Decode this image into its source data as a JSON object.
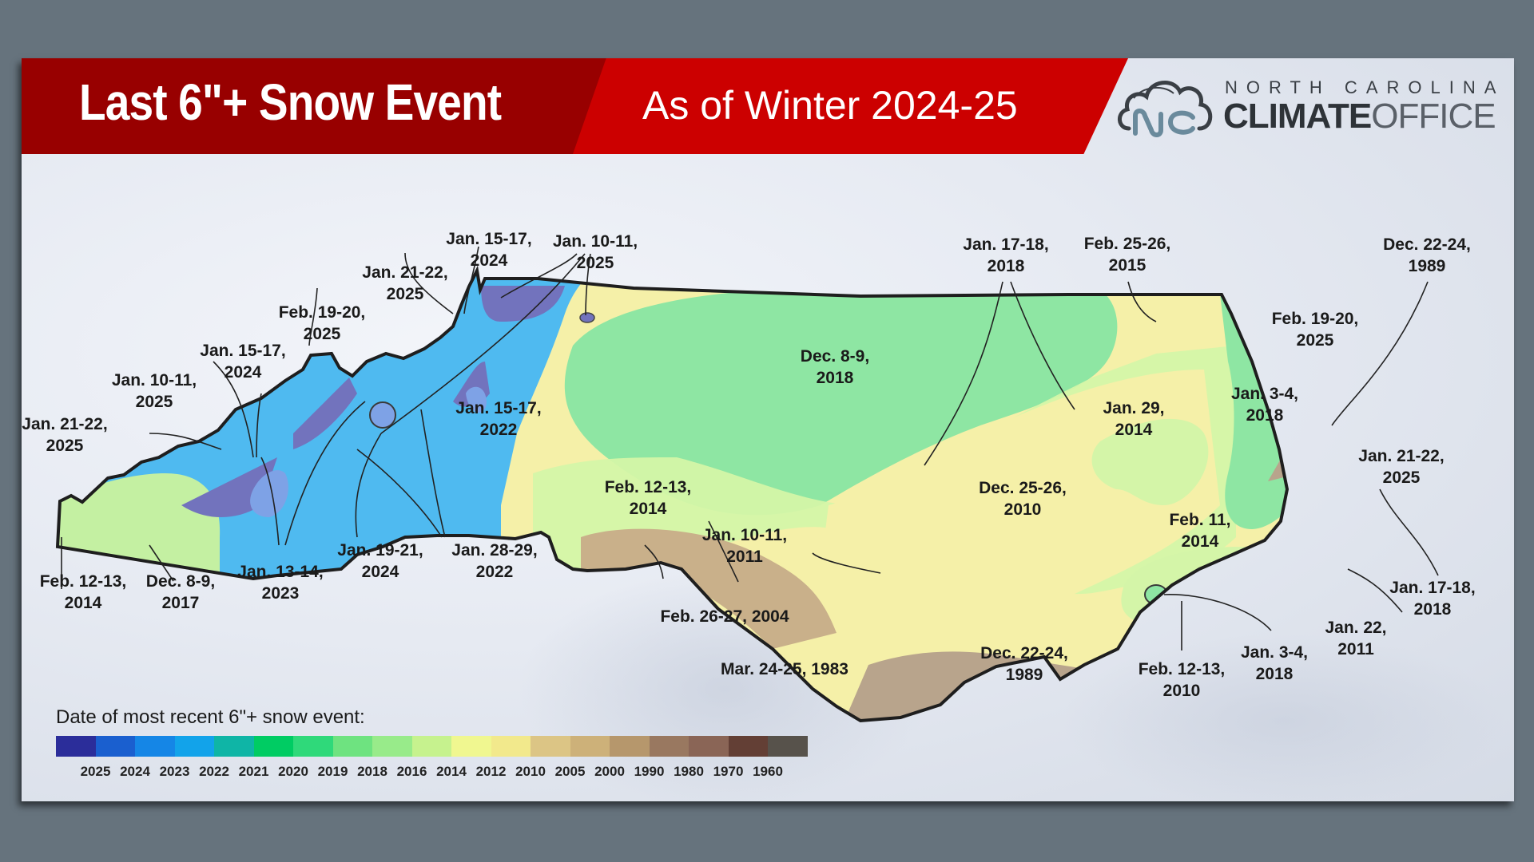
{
  "header": {
    "title": "Last 6\"+ Snow Event",
    "subtitle": "As of Winter 2024-25",
    "logo": {
      "line1": "NORTH CAROLINA",
      "line2_bold": "CLIMATE",
      "line2_light": "OFFICE",
      "icon": "nc-cloud-logo-icon"
    }
  },
  "colors": {
    "background": "#66737d",
    "banner_dark": "#980000",
    "banner_bright": "#cc0000",
    "y2025": "#7273bd",
    "y2024": "#7ea2e6",
    "y2022": "#4fbaf0",
    "y2018": "#8ee6a3",
    "y2014": "#d4f5a8",
    "y2010": "#f5f0a8",
    "y1989": "#b8a48c"
  },
  "legend": {
    "title": "Date of most recent 6\"+ snow event:",
    "swatches": [
      "#2b2d9a",
      "#1a5fcf",
      "#1586e6",
      "#12a3ea",
      "#0fb5a6",
      "#00cc63",
      "#2fd97a",
      "#6ee380",
      "#98eb8a",
      "#c6f28e",
      "#f0f790",
      "#f2e98c",
      "#dcc585",
      "#cdb179",
      "#b6976c",
      "#997860",
      "#8a6556",
      "#633f35",
      "#57524b"
    ],
    "labels": [
      "2025",
      "2024",
      "2023",
      "2022",
      "2021",
      "2020",
      "2019",
      "2018",
      "2016",
      "2014",
      "2012",
      "2010",
      "2005",
      "2000",
      "1990",
      "1980",
      "1970",
      "1960"
    ]
  },
  "chart_data": {
    "type": "choropleth-map",
    "title": "Last 6\"+ Snow Event",
    "subtitle": "As of Winter 2024-25",
    "region": "North Carolina",
    "legend_title": "Date of most recent 6\"+ snow event:",
    "legend_categories": [
      "2025",
      "2024",
      "2023",
      "2022",
      "2021",
      "2020",
      "2019",
      "2018",
      "2016",
      "2014",
      "2012",
      "2010",
      "2005",
      "2000",
      "1990",
      "1980",
      "1970",
      "1960"
    ],
    "annotations": [
      {
        "event": "Jan. 15-17, 2024",
        "year": 2024
      },
      {
        "event": "Jan. 10-11, 2025",
        "year": 2025
      },
      {
        "event": "Jan. 21-22, 2025",
        "year": 2025
      },
      {
        "event": "Feb. 19-20, 2025",
        "year": 2025
      },
      {
        "event": "Jan. 15-17, 2024",
        "year": 2024
      },
      {
        "event": "Jan. 10-11, 2025",
        "year": 2025
      },
      {
        "event": "Jan. 21-22, 2025",
        "year": 2025
      },
      {
        "event": "Jan. 15-17, 2022",
        "year": 2022
      },
      {
        "event": "Feb. 12-13, 2014",
        "year": 2014
      },
      {
        "event": "Dec. 8-9, 2017",
        "year": 2017
      },
      {
        "event": "Jan. 13-14, 2023",
        "year": 2023
      },
      {
        "event": "Jan. 19-21, 2024",
        "year": 2024
      },
      {
        "event": "Jan. 28-29, 2022",
        "year": 2022
      },
      {
        "event": "Dec. 8-9, 2018",
        "year": 2018
      },
      {
        "event": "Jan. 17-18, 2018",
        "year": 2018
      },
      {
        "event": "Feb. 25-26, 2015",
        "year": 2015
      },
      {
        "event": "Dec. 22-24, 1989",
        "year": 1989
      },
      {
        "event": "Feb. 19-20, 2025",
        "year": 2025
      },
      {
        "event": "Jan. 29, 2014",
        "year": 2014
      },
      {
        "event": "Jan. 3-4, 2018",
        "year": 2018
      },
      {
        "event": "Jan. 21-22, 2025",
        "year": 2025
      },
      {
        "event": "Feb. 12-13, 2014",
        "year": 2014
      },
      {
        "event": "Jan. 10-11, 2011",
        "year": 2011
      },
      {
        "event": "Dec. 25-26, 2010",
        "year": 2010
      },
      {
        "event": "Feb. 11, 2014",
        "year": 2014
      },
      {
        "event": "Feb. 26-27, 2004",
        "year": 2004
      },
      {
        "event": "Mar. 24-25, 1983",
        "year": 1983
      },
      {
        "event": "Dec. 22-24, 1989",
        "year": 1989
      },
      {
        "event": "Feb. 12-13, 2010",
        "year": 2010
      },
      {
        "event": "Jan. 3-4, 2018",
        "year": 2018
      },
      {
        "event": "Jan. 22, 2011",
        "year": 2011
      },
      {
        "event": "Jan. 17-18, 2018",
        "year": 2018
      }
    ]
  },
  "labels": {
    "l01": [
      "Jan. 15-17,",
      "2024"
    ],
    "l02": [
      "Jan. 10-11,",
      "2025"
    ],
    "l03": [
      "Jan. 21-22,",
      "2025"
    ],
    "l04": [
      "Feb. 19-20,",
      "2025"
    ],
    "l05": [
      "Jan. 15-17,",
      "2024"
    ],
    "l06": [
      "Jan. 10-11,",
      "2025"
    ],
    "l07": [
      "Jan. 21-22,",
      "2025"
    ],
    "l08": [
      "Jan. 15-17,",
      "2022"
    ],
    "l09": [
      "Feb. 12-13,",
      "2014"
    ],
    "l10": [
      "Dec. 8-9,",
      "2017"
    ],
    "l11": [
      "Jan. 13-14,",
      "2023"
    ],
    "l12": [
      "Jan. 19-21,",
      "2024"
    ],
    "l13": [
      "Jan. 28-29,",
      "2022"
    ],
    "l14": [
      "Dec. 8-9,",
      "2018"
    ],
    "l15": [
      "Jan. 17-18,",
      "2018"
    ],
    "l16": [
      "Feb. 25-26,",
      "2015"
    ],
    "l17": [
      "Dec. 22-24,",
      "1989"
    ],
    "l18": [
      "Feb. 19-20,",
      "2025"
    ],
    "l19": [
      "Jan. 29,",
      "2014"
    ],
    "l20": [
      "Jan. 3-4,",
      "2018"
    ],
    "l21": [
      "Jan. 21-22,",
      "2025"
    ],
    "l22": [
      "Feb. 12-13,",
      "2014"
    ],
    "l23": [
      "Jan. 10-11,",
      "2011"
    ],
    "l24": [
      "Dec. 25-26,",
      "2010"
    ],
    "l25": [
      "Feb. 11,",
      "2014"
    ],
    "l26": [
      "Feb. 26-27, 2004"
    ],
    "l27": [
      "Mar. 24-25, 1983"
    ],
    "l28": [
      "Dec. 22-24,",
      "1989"
    ],
    "l29": [
      "Feb. 12-13,",
      "2010"
    ],
    "l30": [
      "Jan. 3-4,",
      "2018"
    ],
    "l31": [
      "Jan. 22,",
      "2011"
    ],
    "l32": [
      "Jan. 17-18,",
      "2018"
    ]
  }
}
